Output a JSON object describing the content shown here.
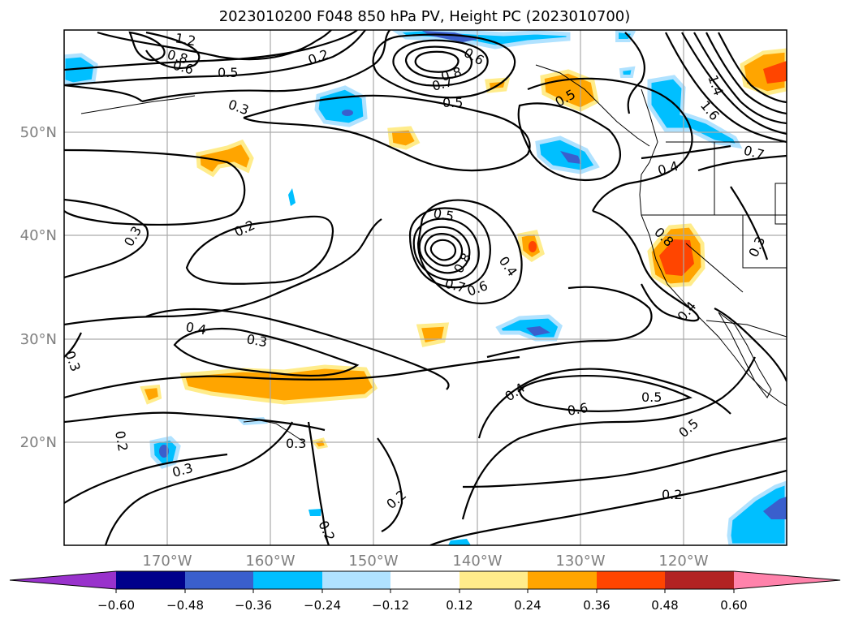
{
  "title": "2023010200 F048 850 hPa PV, Height PC (2023010700)",
  "lat_labels": [
    "50°N",
    "40°N",
    "30°N",
    "20°N"
  ],
  "lon_labels": [
    "170°W",
    "160°W",
    "150°W",
    "140°W",
    "130°W",
    "120°W"
  ],
  "colorbar": {
    "ticks": [
      "−0.60",
      "−0.48",
      "−0.36",
      "−0.24",
      "−0.12",
      "0.12",
      "0.24",
      "0.36",
      "0.48",
      "0.60"
    ],
    "colors": [
      "#9932cc",
      "#00008b",
      "#3a5fcd",
      "#00bfff",
      "#b0e2ff",
      "#ffffff",
      "#ffec8b",
      "#ffa500",
      "#ff4500",
      "#b22222",
      "#ff82ab"
    ]
  },
  "contour_labels": [
    "1.2",
    "0.8",
    "0.6",
    "0.5",
    "0.3",
    "0.2",
    "0.6",
    "0.8",
    "0.7",
    "0.5",
    "0.5",
    "0.4",
    "1.4",
    "1.6",
    "0.7",
    "0.3",
    "0.2",
    "0.5",
    "0.8",
    "0.7",
    "0.6",
    "0.4",
    "0.3",
    "0.8",
    "0.4",
    "0.4",
    "0.3",
    "0.3",
    "0.4",
    "0.6",
    "0.5",
    "0.5",
    "0.2",
    "0.2",
    "0.3",
    "0.3",
    "0.2",
    "0.2"
  ]
}
